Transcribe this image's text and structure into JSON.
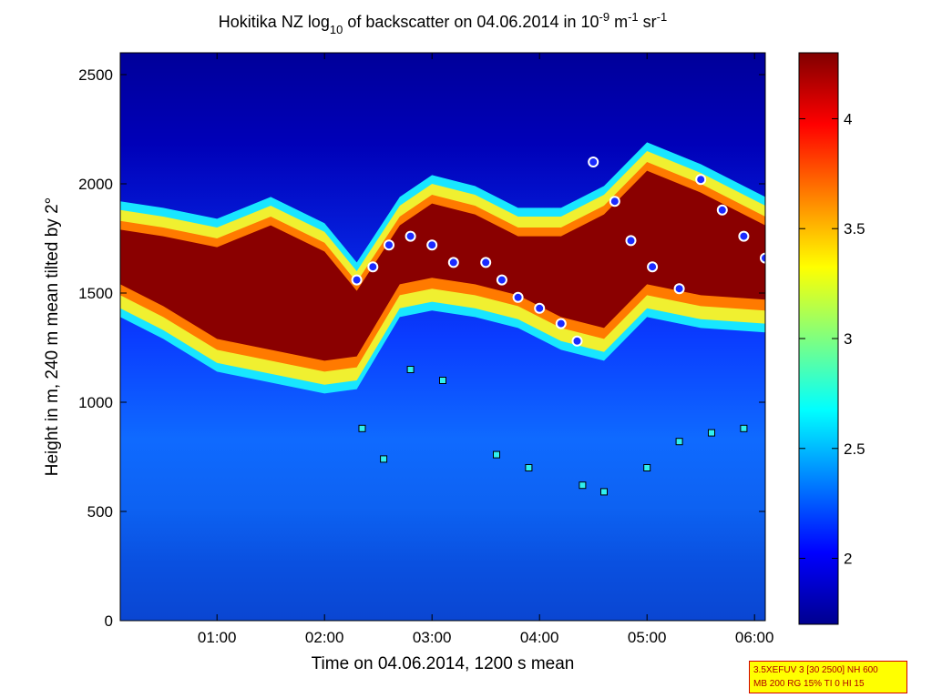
{
  "chart_data": {
    "type": "heatmap",
    "title": {
      "main": "Hokitika NZ log",
      "sub": "10",
      "rest": " of backscatter on 04.06.2014 in 10",
      "exp1": "-9",
      "mid": " m",
      "exp2": "-1",
      "sr": " sr",
      "exp3": "-1"
    },
    "xlabel": "Time on 04.06.2014, 1200 s mean",
    "ylabel": "Height in m, 240 m mean tilted by 2°",
    "x_range_hours": [
      0.1,
      6.1
    ],
    "ylim": [
      0,
      2600
    ],
    "x_ticks": [
      {
        "value": 1,
        "label": "01:00"
      },
      {
        "value": 2,
        "label": "02:00"
      },
      {
        "value": 3,
        "label": "03:00"
      },
      {
        "value": 4,
        "label": "04:00"
      },
      {
        "value": 5,
        "label": "05:00"
      },
      {
        "value": 6,
        "label": "06:00"
      }
    ],
    "y_ticks": [
      {
        "value": 0,
        "label": "0"
      },
      {
        "value": 500,
        "label": "500"
      },
      {
        "value": 1000,
        "label": "1000"
      },
      {
        "value": 1500,
        "label": "1500"
      },
      {
        "value": 2000,
        "label": "2000"
      },
      {
        "value": 2500,
        "label": "2500"
      }
    ],
    "colorbar": {
      "range": [
        1.7,
        4.3
      ],
      "ticks": [
        {
          "value": 2,
          "label": "2"
        },
        {
          "value": 2.5,
          "label": "2.5"
        },
        {
          "value": 3,
          "label": "3"
        },
        {
          "value": 3.5,
          "label": "3.5"
        },
        {
          "value": 4,
          "label": "4"
        }
      ],
      "colormap": "jet"
    },
    "layers_upper": [
      {
        "t": 0.1,
        "base": 1450,
        "top": 1880
      },
      {
        "t": 0.5,
        "base": 1350,
        "top": 1850
      },
      {
        "t": 1.0,
        "base": 1200,
        "top": 1800
      },
      {
        "t": 1.5,
        "base": 1150,
        "top": 1900
      },
      {
        "t": 2.0,
        "base": 1100,
        "top": 1780
      },
      {
        "t": 2.3,
        "base": 1120,
        "top": 1600
      },
      {
        "t": 2.7,
        "base": 1450,
        "top": 1900
      },
      {
        "t": 3.0,
        "base": 1480,
        "top": 2000
      },
      {
        "t": 3.4,
        "base": 1450,
        "top": 1950
      },
      {
        "t": 3.8,
        "base": 1400,
        "top": 1850
      },
      {
        "t": 4.2,
        "base": 1300,
        "top": 1850
      },
      {
        "t": 4.6,
        "base": 1250,
        "top": 1950
      },
      {
        "t": 5.0,
        "base": 1450,
        "top": 2150
      },
      {
        "t": 5.5,
        "base": 1400,
        "top": 2050
      },
      {
        "t": 6.1,
        "base": 1380,
        "top": 1900
      }
    ],
    "cloud_base_circles": [
      {
        "t": 2.3,
        "h": 1560
      },
      {
        "t": 2.45,
        "h": 1620
      },
      {
        "t": 2.6,
        "h": 1720
      },
      {
        "t": 2.8,
        "h": 1760
      },
      {
        "t": 3.0,
        "h": 1720
      },
      {
        "t": 3.2,
        "h": 1640
      },
      {
        "t": 3.5,
        "h": 1640
      },
      {
        "t": 3.65,
        "h": 1560
      },
      {
        "t": 3.8,
        "h": 1480
      },
      {
        "t": 4.0,
        "h": 1430
      },
      {
        "t": 4.2,
        "h": 1360
      },
      {
        "t": 4.35,
        "h": 1280
      },
      {
        "t": 4.5,
        "h": 2100
      },
      {
        "t": 4.7,
        "h": 1920
      },
      {
        "t": 4.85,
        "h": 1740
      },
      {
        "t": 5.05,
        "h": 1620
      },
      {
        "t": 5.3,
        "h": 1520
      },
      {
        "t": 5.5,
        "h": 2020
      },
      {
        "t": 5.7,
        "h": 1880
      },
      {
        "t": 5.9,
        "h": 1760
      },
      {
        "t": 6.1,
        "h": 1660
      }
    ],
    "low_cloud_points": [
      {
        "t": 2.35,
        "h": 880
      },
      {
        "t": 2.55,
        "h": 740
      },
      {
        "t": 2.8,
        "h": 1150
      },
      {
        "t": 3.1,
        "h": 1100
      },
      {
        "t": 3.6,
        "h": 760
      },
      {
        "t": 3.9,
        "h": 700
      },
      {
        "t": 4.4,
        "h": 620
      },
      {
        "t": 4.6,
        "h": 590
      },
      {
        "t": 5.0,
        "h": 700
      },
      {
        "t": 5.3,
        "h": 820
      },
      {
        "t": 5.6,
        "h": 860
      },
      {
        "t": 5.9,
        "h": 880
      }
    ],
    "legend": "none"
  },
  "info_box": {
    "line1": "3.5XEFUV 3 [30 2500] NH 600",
    "line2": "MB 200 RG 15% TI 0 HI 15"
  }
}
